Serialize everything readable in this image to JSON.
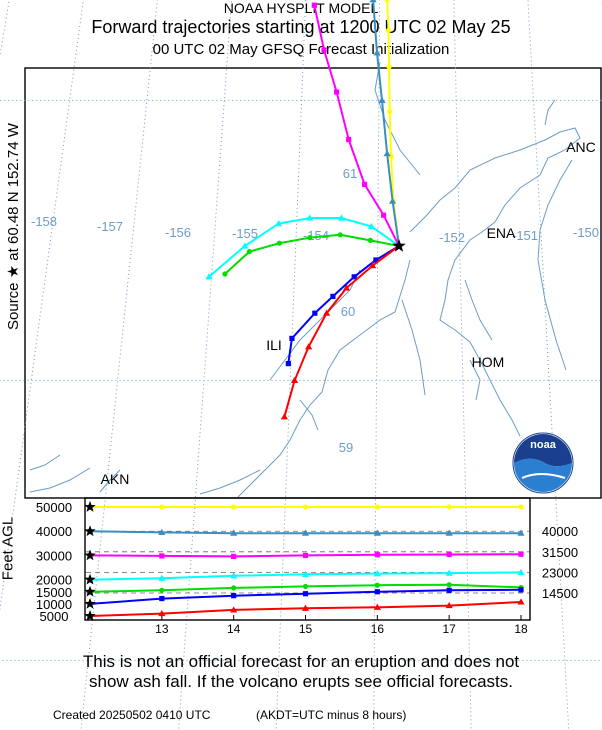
{
  "header": {
    "line1": "NOAA HYSPLIT MODEL",
    "line2": "Forward trajectories starting at 1200 UTC 02 May 25",
    "line3": "00 UTC 02 May    GFSQ  Forecast Initialization"
  },
  "side_label": "Source ★ at   60.48 N  152.74 W",
  "height_axis_label": "Feet AGL",
  "logo_text": "noaa",
  "footer": {
    "disclaimer_line1": "This is not an official forecast for an eruption and does not",
    "disclaimer_line2": "show ash fall. If the volcano erupts see official forecasts.",
    "created": "Created 20250502 0410 UTC",
    "timezone_note": "(AKDT=UTC minus 8 hours)"
  },
  "colors": {
    "map_lines": "#6c9cc8",
    "background": "#ffffff"
  },
  "chart_data": [
    {
      "type": "line",
      "title": "Forward trajectories starting at 1200 UTC 02 May 25",
      "source": {
        "lat": 60.48,
        "lon": -152.74
      },
      "longitude_labels": [
        "-158",
        "-157",
        "-156",
        "-155",
        "-154",
        "-152",
        "-151",
        "-150"
      ],
      "latitude_labels": [
        "61",
        "60",
        "59"
      ],
      "place_labels": [
        "ANC",
        "ENA",
        "HOM",
        "ILI",
        "AKN"
      ],
      "series": [
        {
          "color": "#ffff00",
          "marker": "circle",
          "start_height_ft": 50000,
          "lon": [
            -152.74,
            -152.81,
            -152.84,
            -152.86,
            -152.87,
            -152.88,
            -152.9
          ],
          "lat": [
            60.48,
            60.64,
            60.8,
            60.96,
            61.12,
            61.25,
            61.36
          ]
        },
        {
          "color": "#3a8fc0",
          "marker": "triangle",
          "start_height_ft": 40000,
          "lon": [
            -152.74,
            -152.82,
            -152.89,
            -152.96,
            -153.03,
            -153.09,
            -153.16
          ],
          "lat": [
            60.48,
            60.64,
            60.81,
            61.0,
            61.17,
            61.36,
            61.55
          ]
        },
        {
          "color": "#ff00ff",
          "marker": "square",
          "start_height_ft": 30000,
          "lon": [
            -152.74,
            -152.93,
            -153.17,
            -153.38,
            -153.55,
            -153.73,
            -153.88
          ],
          "lat": [
            60.48,
            60.59,
            60.7,
            60.86,
            61.03,
            61.18,
            61.34
          ]
        },
        {
          "color": "#00ffff",
          "marker": "triangle",
          "start_height_ft": 20000,
          "lon": [
            -152.74,
            -153.08,
            -153.45,
            -153.84,
            -154.22,
            -154.62,
            -155.03
          ],
          "lat": [
            60.48,
            60.55,
            60.58,
            60.58,
            60.56,
            60.48,
            60.37
          ]
        },
        {
          "color": "#00dd00",
          "marker": "circle",
          "start_height_ft": 15000,
          "lon": [
            -152.74,
            -153.09,
            -153.46,
            -153.83,
            -154.2,
            -154.56,
            -154.84
          ],
          "lat": [
            60.48,
            60.5,
            60.52,
            60.51,
            60.49,
            60.46,
            60.38
          ]
        },
        {
          "color": "#0000ff",
          "marker": "square",
          "start_height_ft": 10000,
          "lon": [
            -152.74,
            -153.02,
            -153.28,
            -153.53,
            -153.74,
            -154.0,
            -154.03
          ],
          "lat": [
            60.48,
            60.43,
            60.37,
            60.3,
            60.24,
            60.15,
            60.06
          ]
        },
        {
          "color": "#ff0000",
          "marker": "triangle",
          "start_height_ft": 5000,
          "lon": [
            -152.74,
            -153.06,
            -153.37,
            -153.6,
            -153.8,
            -153.95,
            -154.05
          ],
          "lat": [
            60.48,
            60.41,
            60.33,
            60.24,
            60.12,
            60.0,
            59.87
          ]
        }
      ]
    },
    {
      "type": "line",
      "xlabel": "",
      "ylabel": "Feet AGL",
      "x_ticks": [
        "13",
        "14",
        "15",
        "16",
        "17",
        "18"
      ],
      "x_range": [
        12,
        18
      ],
      "y_range": [
        5000,
        50000
      ],
      "y_left_ticks": [
        "5000",
        "10000",
        "15000",
        "20000",
        "30000",
        "40000",
        "50000"
      ],
      "y_right_labels": [
        "40000",
        "31500",
        "23000",
        "14500"
      ],
      "series": [
        {
          "color": "#ffff00",
          "x": [
            12,
            13,
            14,
            15,
            16,
            17,
            18
          ],
          "y": [
            50000,
            50000,
            50000,
            50000,
            50000,
            50000,
            50000
          ]
        },
        {
          "color": "#3a8fc0",
          "x": [
            12,
            13,
            14,
            15,
            16,
            17,
            18
          ],
          "y": [
            40000,
            39500,
            39200,
            39200,
            39200,
            39200,
            39200
          ]
        },
        {
          "color": "#ff00ff",
          "x": [
            12,
            13,
            14,
            15,
            16,
            17,
            18
          ],
          "y": [
            30000,
            29800,
            29600,
            30000,
            30300,
            30400,
            30500
          ]
        },
        {
          "color": "#00ffff",
          "x": [
            12,
            13,
            14,
            15,
            16,
            17,
            18
          ],
          "y": [
            20000,
            20600,
            21600,
            22200,
            22500,
            22700,
            23000
          ]
        },
        {
          "color": "#00dd00",
          "x": [
            12,
            13,
            14,
            15,
            16,
            17,
            18
          ],
          "y": [
            15000,
            15600,
            16600,
            17200,
            17700,
            17900,
            16800
          ]
        },
        {
          "color": "#0000ff",
          "x": [
            12,
            13,
            14,
            15,
            16,
            17,
            18
          ],
          "y": [
            10000,
            12200,
            13400,
            14200,
            15000,
            15600,
            15800
          ]
        },
        {
          "color": "#ff0000",
          "x": [
            12,
            13,
            14,
            15,
            16,
            17,
            18
          ],
          "y": [
            5000,
            6000,
            7500,
            8200,
            8600,
            9300,
            10800
          ]
        }
      ]
    }
  ]
}
